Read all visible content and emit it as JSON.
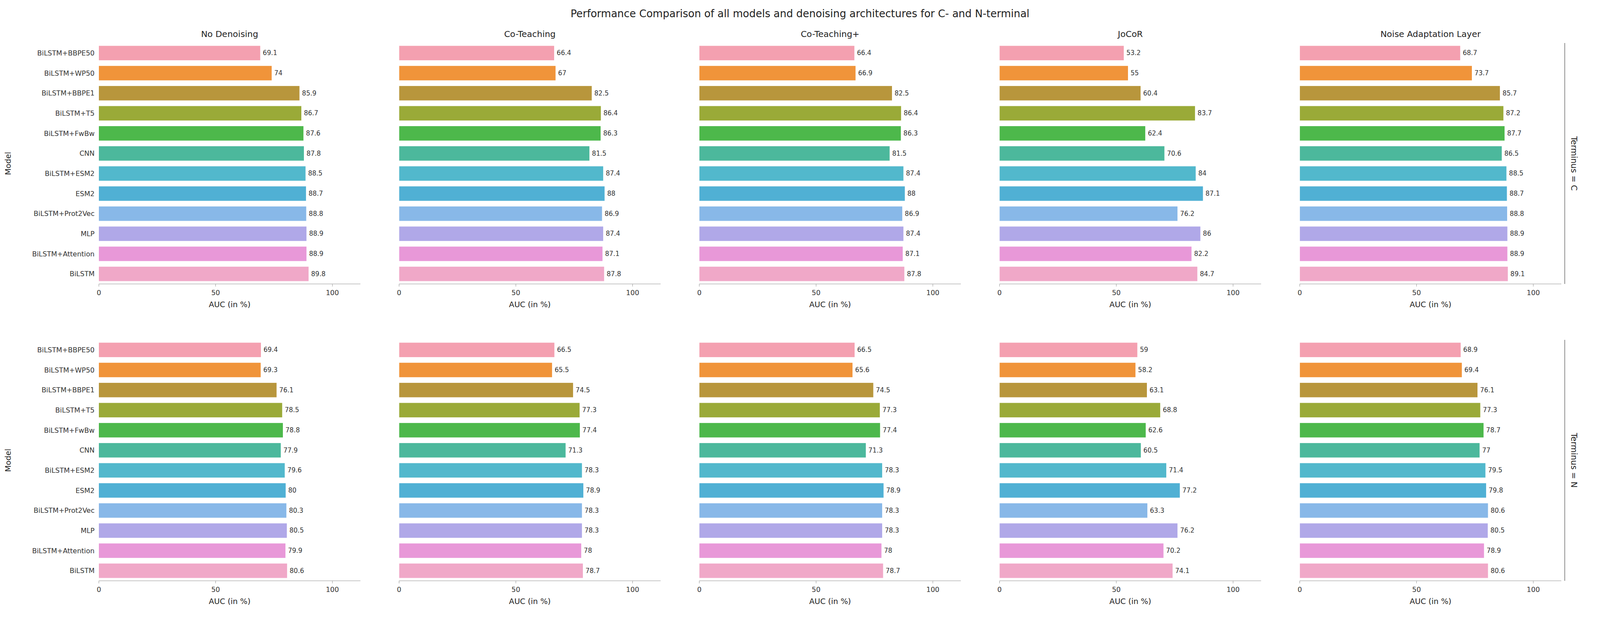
{
  "title": "Performance Comparison of all models and denoising architectures for C- and N-terminal",
  "chart_data": [
    {
      "type": "bar",
      "orientation": "horizontal",
      "title": "No Denoising",
      "xlabel": "AUC (in %)",
      "ylabel": "Model",
      "categories": [
        "BiLSTM+BBPE50",
        "BiLSTM+WP50",
        "BiLSTM+BBPE1",
        "BiLSTM+T5",
        "BiLSTM+FwBw",
        "CNN",
        "BiLSTM+ESM2",
        "ESM2",
        "BiLSTM+Prot2Vec",
        "MLP",
        "BiLSTM+Attention",
        "BiLSTM"
      ],
      "values": [
        69.1,
        74.0,
        85.9,
        86.7,
        87.6,
        87.8,
        88.5,
        88.7,
        88.8,
        88.9,
        88.9,
        89.8
      ],
      "colors": [
        "#f4a0b0",
        "#f0943a",
        "#b8963c",
        "#9aaa38",
        "#4db84b",
        "#4cb89c",
        "#52b8cc",
        "#50b0d4",
        "#88b8e8",
        "#b0a8e8",
        "#e898d8",
        "#f0a8c8"
      ],
      "xlim": [
        0,
        112
      ],
      "xticks": [
        0,
        50,
        100
      ],
      "grid": false,
      "data_labels": true
    },
    {
      "type": "bar",
      "orientation": "horizontal",
      "title": "Co-Teaching",
      "xlabel": "AUC (in %)",
      "tick_labels": "x",
      "categories": [
        "BiLSTM+BBPE50",
        "BiLSTM+WP50",
        "BiLSTM+BBPE1",
        "BiLSTM+T5",
        "BiLSTM+FwBw",
        "CNN",
        "BiLSTM+ESM2",
        "ESM2",
        "BiLSTM+Prot2Vec",
        "MLP",
        "BiLSTM+Attention",
        "BiLSTM"
      ],
      "values": [
        66.4,
        67.0,
        82.5,
        86.4,
        86.3,
        81.5,
        87.4,
        88.0,
        86.9,
        87.4,
        87.1,
        87.8
      ],
      "colors": [
        "#f4a0b0",
        "#f0943a",
        "#b8963c",
        "#9aaa38",
        "#4db84b",
        "#4cb89c",
        "#52b8cc",
        "#50b0d4",
        "#88b8e8",
        "#b0a8e8",
        "#e898d8",
        "#f0a8c8"
      ],
      "xlim": [
        0,
        112
      ],
      "xticks": [
        0,
        50,
        100
      ],
      "grid": false,
      "data_labels": true
    },
    {
      "type": "bar",
      "orientation": "horizontal",
      "title": "Co-Teaching+",
      "xlabel": "AUC (in %)",
      "tick_labels": "x",
      "categories": [
        "BiLSTM+BBPE50",
        "BiLSTM+WP50",
        "BiLSTM+BBPE1",
        "BiLSTM+T5",
        "BiLSTM+FwBw",
        "CNN",
        "BiLSTM+ESM2",
        "ESM2",
        "BiLSTM+Prot2Vec",
        "MLP",
        "BiLSTM+Attention",
        "BiLSTM"
      ],
      "values": [
        66.4,
        66.9,
        82.5,
        86.4,
        86.3,
        81.5,
        87.4,
        88.0,
        86.9,
        87.4,
        87.1,
        87.8
      ],
      "colors": [
        "#f4a0b0",
        "#f0943a",
        "#b8963c",
        "#9aaa38",
        "#4db84b",
        "#4cb89c",
        "#52b8cc",
        "#50b0d4",
        "#88b8e8",
        "#b0a8e8",
        "#e898d8",
        "#f0a8c8"
      ],
      "xlim": [
        0,
        112
      ],
      "xticks": [
        0,
        50,
        100
      ],
      "grid": false,
      "data_labels": true
    },
    {
      "type": "bar",
      "orientation": "horizontal",
      "title": "JoCoR",
      "xlabel": "AUC (in %)",
      "tick_labels": "x",
      "categories": [
        "BiLSTM+BBPE50",
        "BiLSTM+WP50",
        "BiLSTM+BBPE1",
        "BiLSTM+T5",
        "BiLSTM+FwBw",
        "CNN",
        "BiLSTM+ESM2",
        "ESM2",
        "BiLSTM+Prot2Vec",
        "MLP",
        "BiLSTM+Attention",
        "BiLSTM"
      ],
      "values": [
        53.2,
        55.0,
        60.4,
        83.7,
        62.4,
        70.6,
        84.0,
        87.1,
        76.2,
        86.0,
        82.2,
        84.7
      ],
      "colors": [
        "#f4a0b0",
        "#f0943a",
        "#b8963c",
        "#9aaa38",
        "#4db84b",
        "#4cb89c",
        "#52b8cc",
        "#50b0d4",
        "#88b8e8",
        "#b0a8e8",
        "#e898d8",
        "#f0a8c8"
      ],
      "xlim": [
        0,
        112
      ],
      "xticks": [
        0,
        50,
        100
      ],
      "grid": false,
      "data_labels": true
    },
    {
      "type": "bar",
      "orientation": "horizontal",
      "title": "Noise Adaptation Layer",
      "xlabel": "AUC (in %)",
      "tick_labels": "x",
      "annotations": [
        "Terminus = C"
      ],
      "categories": [
        "BiLSTM+BBPE50",
        "BiLSTM+WP50",
        "BiLSTM+BBPE1",
        "BiLSTM+T5",
        "BiLSTM+FwBw",
        "CNN",
        "BiLSTM+ESM2",
        "ESM2",
        "BiLSTM+Prot2Vec",
        "MLP",
        "BiLSTM+Attention",
        "BiLSTM"
      ],
      "values": [
        68.7,
        73.7,
        85.7,
        87.2,
        87.7,
        86.5,
        88.5,
        88.7,
        88.8,
        88.9,
        88.9,
        89.1
      ],
      "colors": [
        "#f4a0b0",
        "#f0943a",
        "#b8963c",
        "#9aaa38",
        "#4db84b",
        "#4cb89c",
        "#52b8cc",
        "#50b0d4",
        "#88b8e8",
        "#b0a8e8",
        "#e898d8",
        "#f0a8c8"
      ],
      "xlim": [
        0,
        112
      ],
      "xticks": [
        0,
        50,
        100
      ],
      "grid": false,
      "data_labels": true
    },
    {
      "type": "bar",
      "orientation": "horizontal",
      "xlabel": "AUC (in %)",
      "ylabel": "Model",
      "categories": [
        "BiLSTM+BBPE50",
        "BiLSTM+WP50",
        "BiLSTM+BBPE1",
        "BiLSTM+T5",
        "BiLSTM+FwBw",
        "CNN",
        "BiLSTM+ESM2",
        "ESM2",
        "BiLSTM+Prot2Vec",
        "MLP",
        "BiLSTM+Attention",
        "BiLSTM"
      ],
      "values": [
        69.4,
        69.3,
        76.1,
        78.5,
        78.8,
        77.9,
        79.6,
        80.0,
        80.3,
        80.5,
        79.9,
        80.6
      ],
      "colors": [
        "#f4a0b0",
        "#f0943a",
        "#b8963c",
        "#9aaa38",
        "#4db84b",
        "#4cb89c",
        "#52b8cc",
        "#50b0d4",
        "#88b8e8",
        "#b0a8e8",
        "#e898d8",
        "#f0a8c8"
      ],
      "xlim": [
        0,
        112
      ],
      "xticks": [
        0,
        50,
        100
      ],
      "grid": false,
      "data_labels": true
    },
    {
      "type": "bar",
      "orientation": "horizontal",
      "xlabel": "AUC (in %)",
      "tick_labels": "x",
      "categories": [
        "BiLSTM+BBPE50",
        "BiLSTM+WP50",
        "BiLSTM+BBPE1",
        "BiLSTM+T5",
        "BiLSTM+FwBw",
        "CNN",
        "BiLSTM+ESM2",
        "ESM2",
        "BiLSTM+Prot2Vec",
        "MLP",
        "BiLSTM+Attention",
        "BiLSTM"
      ],
      "values": [
        66.5,
        65.5,
        74.5,
        77.3,
        77.4,
        71.3,
        78.3,
        78.9,
        78.3,
        78.3,
        78.0,
        78.7
      ],
      "colors": [
        "#f4a0b0",
        "#f0943a",
        "#b8963c",
        "#9aaa38",
        "#4db84b",
        "#4cb89c",
        "#52b8cc",
        "#50b0d4",
        "#88b8e8",
        "#b0a8e8",
        "#e898d8",
        "#f0a8c8"
      ],
      "xlim": [
        0,
        112
      ],
      "xticks": [
        0,
        50,
        100
      ],
      "grid": false,
      "data_labels": true
    },
    {
      "type": "bar",
      "orientation": "horizontal",
      "xlabel": "AUC (in %)",
      "tick_labels": "x",
      "categories": [
        "BiLSTM+BBPE50",
        "BiLSTM+WP50",
        "BiLSTM+BBPE1",
        "BiLSTM+T5",
        "BiLSTM+FwBw",
        "CNN",
        "BiLSTM+ESM2",
        "ESM2",
        "BiLSTM+Prot2Vec",
        "MLP",
        "BiLSTM+Attention",
        "BiLSTM"
      ],
      "values": [
        66.5,
        65.6,
        74.5,
        77.3,
        77.4,
        71.3,
        78.3,
        78.9,
        78.3,
        78.3,
        78.0,
        78.7
      ],
      "colors": [
        "#f4a0b0",
        "#f0943a",
        "#b8963c",
        "#9aaa38",
        "#4db84b",
        "#4cb89c",
        "#52b8cc",
        "#50b0d4",
        "#88b8e8",
        "#b0a8e8",
        "#e898d8",
        "#f0a8c8"
      ],
      "xlim": [
        0,
        112
      ],
      "xticks": [
        0,
        50,
        100
      ],
      "grid": false,
      "data_labels": true
    },
    {
      "type": "bar",
      "orientation": "horizontal",
      "xlabel": "AUC (in %)",
      "tick_labels": "x",
      "categories": [
        "BiLSTM+BBPE50",
        "BiLSTM+WP50",
        "BiLSTM+BBPE1",
        "BiLSTM+T5",
        "BiLSTM+FwBw",
        "CNN",
        "BiLSTM+ESM2",
        "ESM2",
        "BiLSTM+Prot2Vec",
        "MLP",
        "BiLSTM+Attention",
        "BiLSTM"
      ],
      "values": [
        59.0,
        58.2,
        63.1,
        68.8,
        62.6,
        60.5,
        71.4,
        77.2,
        63.3,
        76.2,
        70.2,
        74.1
      ],
      "colors": [
        "#f4a0b0",
        "#f0943a",
        "#b8963c",
        "#9aaa38",
        "#4db84b",
        "#4cb89c",
        "#52b8cc",
        "#50b0d4",
        "#88b8e8",
        "#b0a8e8",
        "#e898d8",
        "#f0a8c8"
      ],
      "xlim": [
        0,
        112
      ],
      "xticks": [
        0,
        50,
        100
      ],
      "grid": false,
      "data_labels": true
    },
    {
      "type": "bar",
      "orientation": "horizontal",
      "xlabel": "AUC (in %)",
      "tick_labels": "x",
      "annotations": [
        "Terminus = N"
      ],
      "categories": [
        "BiLSTM+BBPE50",
        "BiLSTM+WP50",
        "BiLSTM+BBPE1",
        "BiLSTM+T5",
        "BiLSTM+FwBw",
        "CNN",
        "BiLSTM+ESM2",
        "ESM2",
        "BiLSTM+Prot2Vec",
        "MLP",
        "BiLSTM+Attention",
        "BiLSTM"
      ],
      "values": [
        68.9,
        69.4,
        76.1,
        77.3,
        78.7,
        77.0,
        79.5,
        79.8,
        80.6,
        80.5,
        78.9,
        80.6
      ],
      "colors": [
        "#f4a0b0",
        "#f0943a",
        "#b8963c",
        "#9aaa38",
        "#4db84b",
        "#4cb89c",
        "#52b8cc",
        "#50b0d4",
        "#88b8e8",
        "#b0a8e8",
        "#e898d8",
        "#f0a8c8"
      ],
      "xlim": [
        0,
        112
      ],
      "xticks": [
        0,
        50,
        100
      ],
      "grid": false,
      "data_labels": true
    }
  ]
}
